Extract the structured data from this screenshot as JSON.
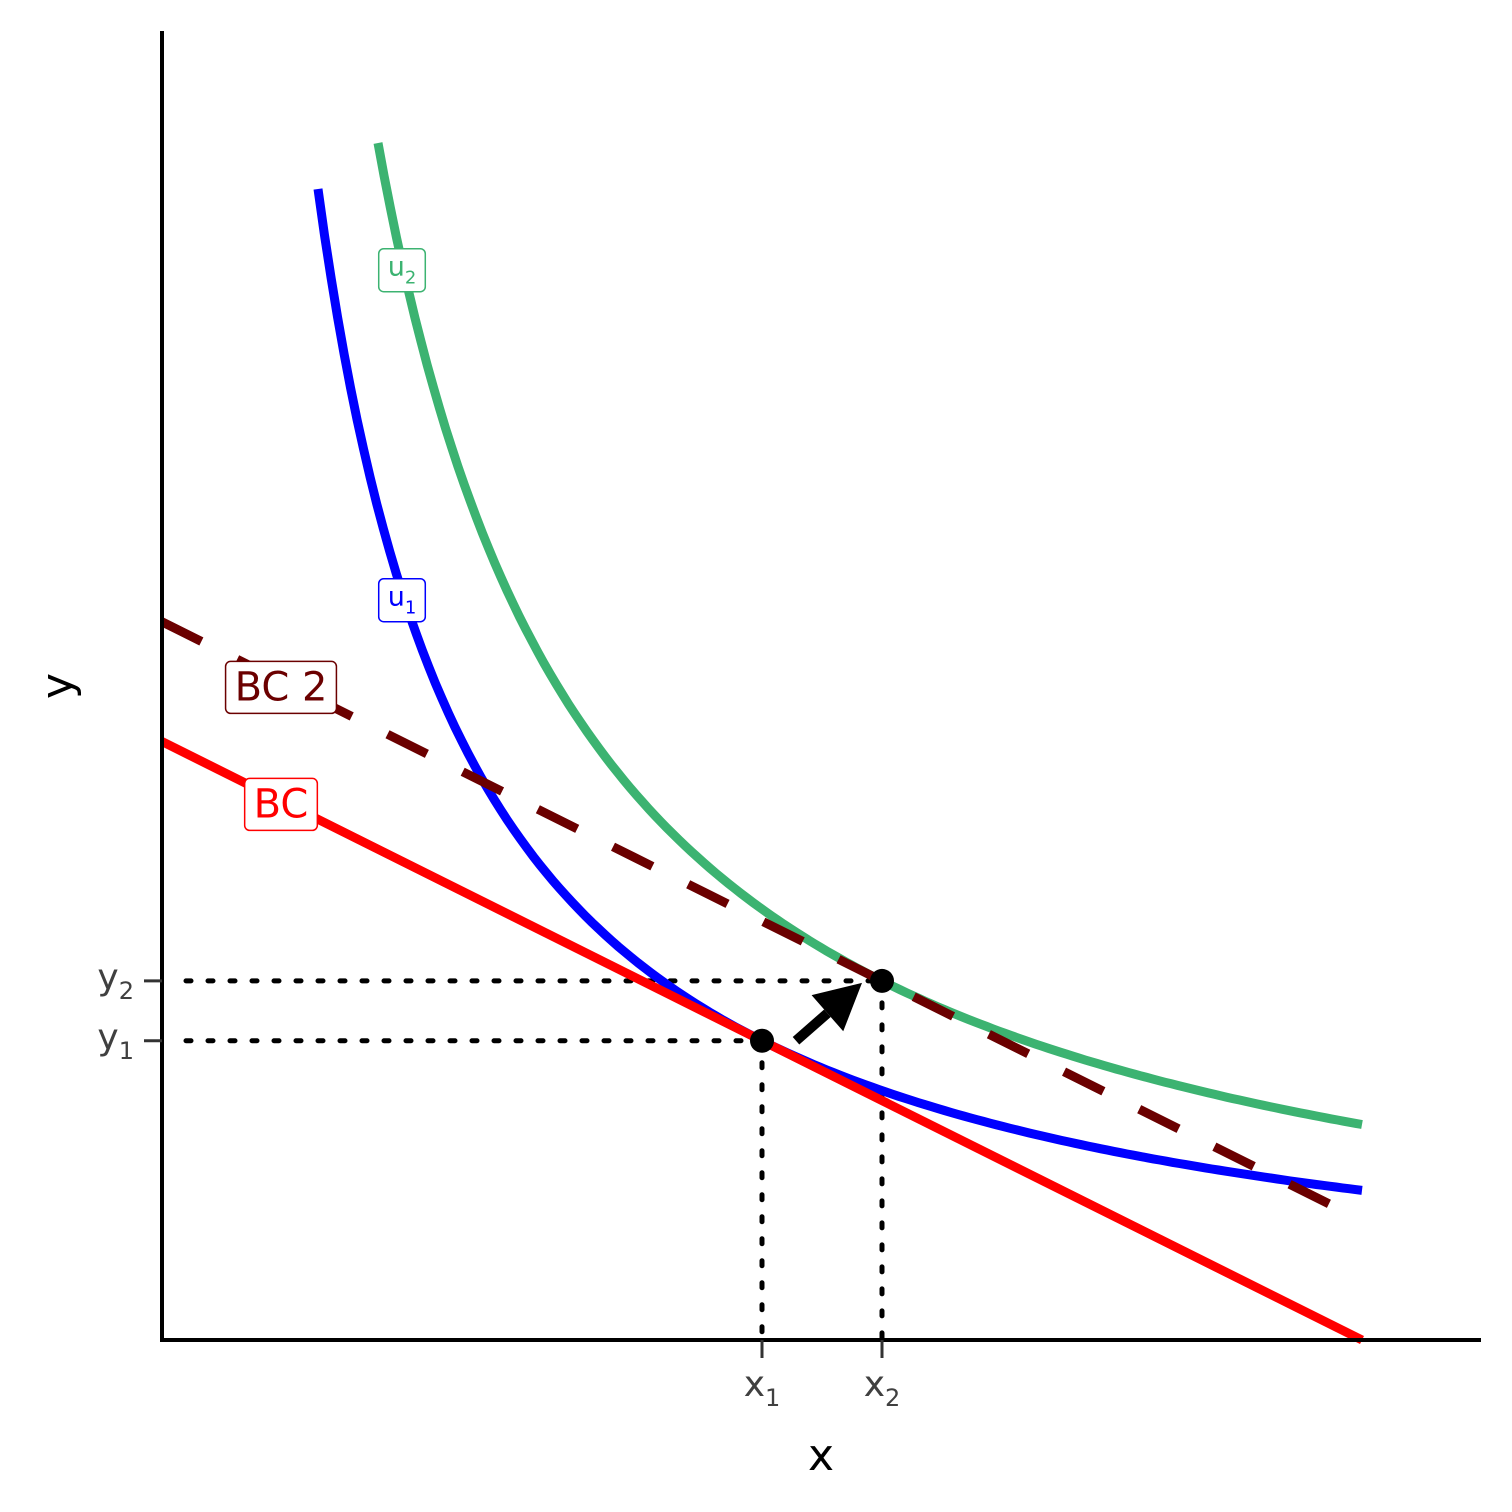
{
  "chart_data": {
    "type": "line",
    "title": "",
    "xlabel": "x",
    "ylabel": "y",
    "xlim": [
      0,
      11
    ],
    "ylim": [
      0,
      11
    ],
    "grid": false,
    "legend": "none",
    "x_ticks": [
      {
        "value": 5,
        "main": "x",
        "sub": "1"
      },
      {
        "value": 6,
        "main": "x",
        "sub": "2"
      }
    ],
    "y_ticks": [
      {
        "value": 2.5,
        "main": "y",
        "sub": "1"
      },
      {
        "value": 3.0,
        "main": "y",
        "sub": "2"
      }
    ],
    "series": [
      {
        "key": "u2",
        "label_main": "u",
        "label_sub": "2",
        "color": "#3CB371",
        "style": "solid",
        "function": "k/x",
        "k": 18,
        "x_range": [
          1.8,
          10
        ],
        "label_x": 2.0
      },
      {
        "key": "u1",
        "label_main": "u",
        "label_sub": "1",
        "color": "#0000FF",
        "style": "solid",
        "function": "k/x",
        "k": 12.5,
        "x_range": [
          1.3,
          10
        ],
        "label_x": 2.0
      },
      {
        "key": "bc2",
        "label_main": "BC 2",
        "label_sub": "",
        "color": "#6B0000",
        "style": "dashed",
        "function": "linear",
        "points": [
          [
            0,
            6.0
          ],
          [
            10,
            1.0
          ]
        ],
        "label_x": 1.0
      },
      {
        "key": "bc",
        "label_main": "BC",
        "label_sub": "",
        "color": "#FF0000",
        "style": "solid",
        "function": "linear",
        "points": [
          [
            0,
            5.0
          ],
          [
            10,
            0.0
          ]
        ],
        "label_x": 1.0
      }
    ],
    "points": [
      {
        "x": 5,
        "y": 2.5
      },
      {
        "x": 6,
        "y": 3.0
      }
    ],
    "arrow": {
      "from": [
        5.25,
        2.5
      ],
      "to": [
        5.8,
        3.0
      ]
    }
  }
}
